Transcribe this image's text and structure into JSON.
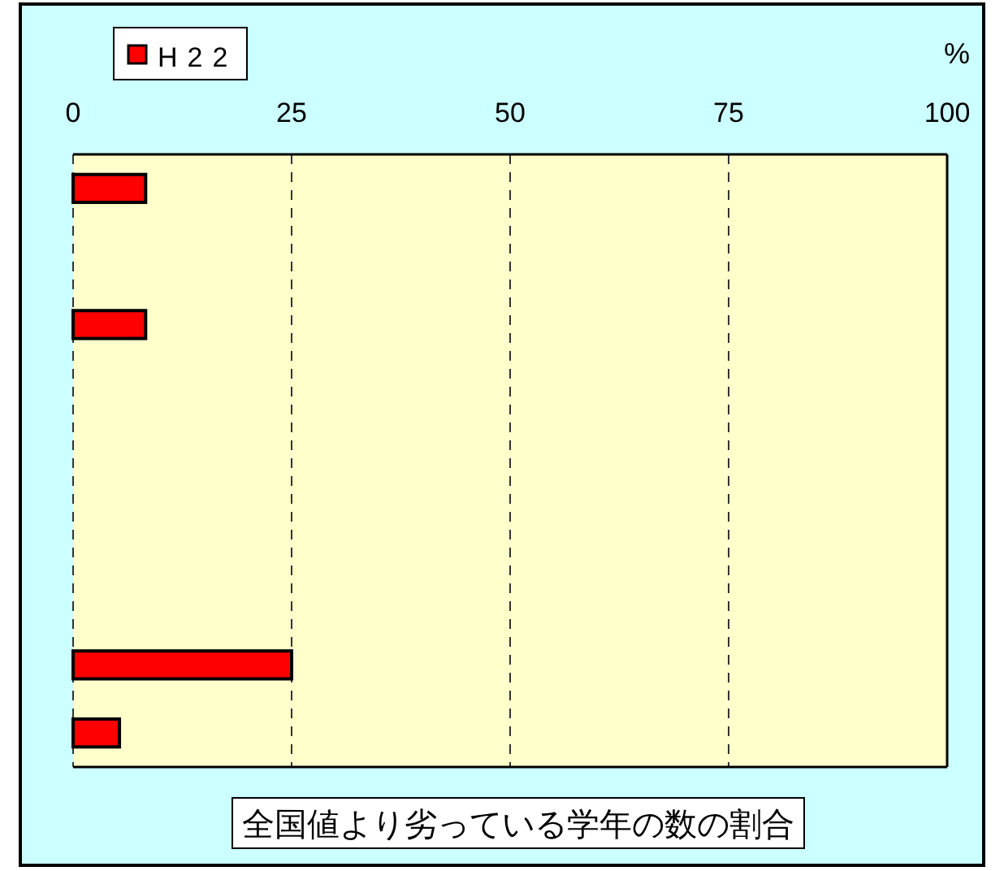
{
  "chart_data": {
    "type": "bar",
    "orientation": "horizontal",
    "title": "全国値より劣っている学年の数の割合",
    "xlabel": "%",
    "categories": [
      null,
      null,
      null,
      null,
      null,
      null,
      null,
      null,
      null
    ],
    "series": [
      {
        "name": "H22",
        "color": "#ff0000",
        "values": [
          8.3,
          0,
          8.3,
          0,
          0,
          0,
          0,
          25,
          5.3
        ]
      }
    ],
    "xlim": [
      0,
      100
    ],
    "xticks": [
      0,
      25,
      50,
      75,
      100
    ],
    "grid": "x",
    "legend": "top left",
    "tick_labels": "x"
  }
}
